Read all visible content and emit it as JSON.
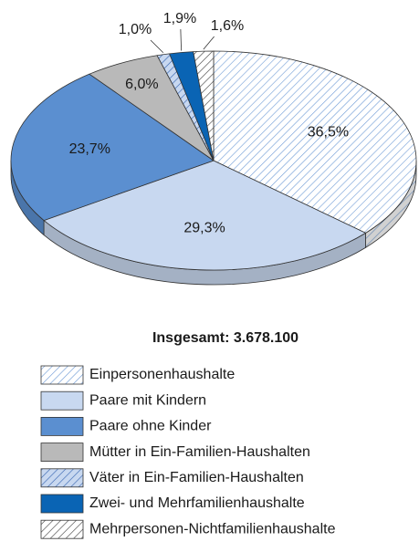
{
  "chart_data": {
    "type": "pie",
    "subtitle": "Insgesamt: 3.678.100",
    "categories": [
      "Einpersonenhaushalte",
      "Paare mit Kindern",
      "Paare ohne Kinder",
      "Mütter in Ein-Familien-Haushalten",
      "Väter in Ein-Familien-Haushalten",
      "Zwei- und Mehrfamilienhaushalte",
      "Mehrpersonen-Nichtfamilienhaushalte"
    ],
    "values": [
      36.5,
      29.3,
      23.7,
      6.0,
      1.0,
      1.9,
      1.6
    ],
    "value_labels": [
      "36,5%",
      "29,3%",
      "23,7%",
      "6,0%",
      "1,0%",
      "1,9%",
      "1,6%"
    ],
    "colors": [
      "#ffffff",
      "#c8d8f0",
      "#5b8fd0",
      "#b9b9b9",
      "#c8d8f0",
      "#0a64b4",
      "#ffffff"
    ],
    "hatch_colors": [
      "#6f9bd6",
      null,
      null,
      null,
      "#2f5fae",
      null,
      "#333333"
    ]
  }
}
